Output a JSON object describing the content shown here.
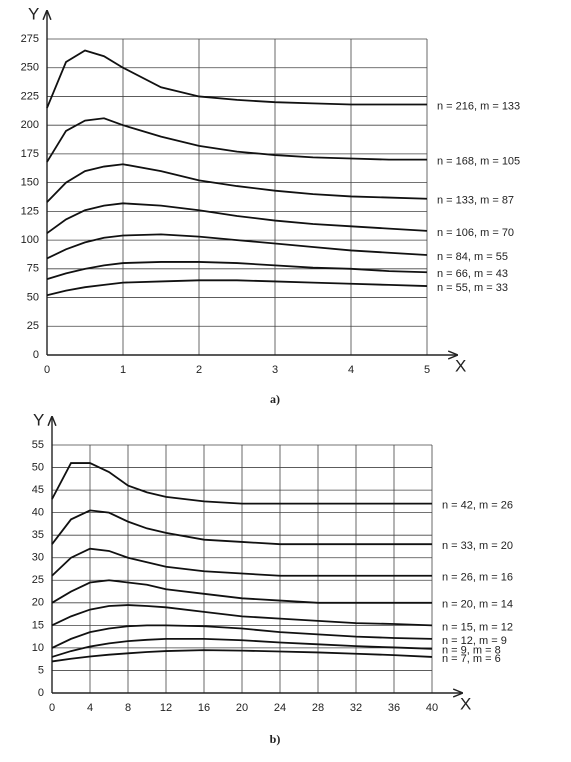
{
  "chart_data": [
    {
      "type": "line",
      "caption": "a)",
      "x_label": "X",
      "y_label": "Y",
      "x": [
        0,
        0.25,
        0.5,
        0.75,
        1,
        1.5,
        2,
        2.5,
        3,
        3.5,
        4,
        4.5,
        5
      ],
      "xlim": [
        0,
        5
      ],
      "xticks": [
        0,
        1,
        2,
        3,
        4,
        5
      ],
      "ylim": [
        0,
        275
      ],
      "yticks": [
        0,
        25,
        50,
        75,
        100,
        125,
        150,
        175,
        200,
        225,
        250,
        275
      ],
      "grid": true,
      "series": [
        {
          "name": "n = 216, m = 133",
          "color": "#111111",
          "values": [
            215,
            255,
            265,
            260,
            250,
            233,
            225,
            222,
            220,
            219,
            218,
            218,
            218
          ]
        },
        {
          "name": "n = 168, m = 105",
          "color": "#111111",
          "values": [
            168,
            195,
            204,
            206,
            200,
            190,
            182,
            177,
            174,
            172,
            171,
            170,
            170
          ]
        },
        {
          "name": "n = 133, m = 87",
          "color": "#111111",
          "values": [
            133,
            150,
            160,
            164,
            166,
            160,
            152,
            147,
            143,
            140,
            138,
            137,
            136
          ]
        },
        {
          "name": "n = 106, m = 70",
          "color": "#111111",
          "values": [
            106,
            118,
            126,
            130,
            132,
            130,
            126,
            121,
            117,
            114,
            112,
            110,
            108
          ]
        },
        {
          "name": "n = 84, m = 55",
          "color": "#111111",
          "values": [
            84,
            92,
            98,
            102,
            104,
            105,
            103,
            100,
            97,
            94,
            91,
            89,
            87
          ]
        },
        {
          "name": "n = 66, m = 43",
          "color": "#111111",
          "values": [
            66,
            71,
            75,
            78,
            80,
            81,
            81,
            80,
            78,
            76,
            75,
            73,
            72
          ]
        },
        {
          "name": "n = 55, m = 33",
          "color": "#111111",
          "values": [
            52,
            56,
            59,
            61,
            63,
            64,
            65,
            65,
            64,
            63,
            62,
            61,
            60
          ]
        }
      ]
    },
    {
      "type": "line",
      "caption": "b)",
      "x_label": "X",
      "y_label": "Y",
      "x": [
        0,
        2,
        4,
        6,
        8,
        10,
        12,
        16,
        20,
        24,
        28,
        32,
        36,
        40
      ],
      "xlim": [
        0,
        40
      ],
      "xticks": [
        0,
        4,
        8,
        12,
        16,
        20,
        24,
        28,
        32,
        36,
        40
      ],
      "ylim": [
        0,
        55
      ],
      "yticks": [
        0,
        5,
        10,
        15,
        20,
        25,
        30,
        35,
        40,
        45,
        50,
        55
      ],
      "grid": true,
      "series": [
        {
          "name": "n = 42, m = 26",
          "color": "#111111",
          "values": [
            43,
            51,
            51,
            49,
            46,
            44.5,
            43.5,
            42.5,
            42,
            42,
            42,
            42,
            42,
            42
          ]
        },
        {
          "name": "n = 33, m = 20",
          "color": "#111111",
          "values": [
            33,
            38.5,
            40.5,
            40,
            38,
            36.5,
            35.5,
            34,
            33.5,
            33,
            33,
            33,
            33,
            33
          ]
        },
        {
          "name": "n = 26, m = 16",
          "color": "#111111",
          "values": [
            26,
            30,
            32,
            31.5,
            30,
            29,
            28,
            27,
            26.5,
            26,
            26,
            26,
            26,
            26
          ]
        },
        {
          "name": "n = 20, m = 14",
          "color": "#111111",
          "values": [
            20,
            22.5,
            24.5,
            25,
            24.5,
            24,
            23,
            22,
            21,
            20.5,
            20,
            20,
            20,
            20
          ]
        },
        {
          "name": "n = 15, m = 12",
          "color": "#111111",
          "values": [
            15,
            17,
            18.5,
            19.3,
            19.5,
            19.3,
            19,
            18,
            17,
            16.5,
            16,
            15.5,
            15.3,
            15
          ]
        },
        {
          "name": "n = 12, m = 9",
          "color": "#111111",
          "values": [
            10,
            12,
            13.5,
            14.3,
            14.8,
            15,
            15,
            14.8,
            14.3,
            13.5,
            13,
            12.5,
            12.2,
            12
          ]
        },
        {
          "name": "n = 9, m = 8",
          "color": "#111111",
          "values": [
            8,
            9.3,
            10.3,
            11,
            11.5,
            11.8,
            12,
            12,
            11.7,
            11.2,
            10.8,
            10.4,
            10.1,
            9.8
          ]
        },
        {
          "name": "n = 7, m = 6",
          "color": "#111111",
          "values": [
            7,
            7.6,
            8.1,
            8.5,
            8.8,
            9.1,
            9.3,
            9.5,
            9.4,
            9.2,
            9,
            8.7,
            8.4,
            8
          ]
        }
      ]
    }
  ]
}
